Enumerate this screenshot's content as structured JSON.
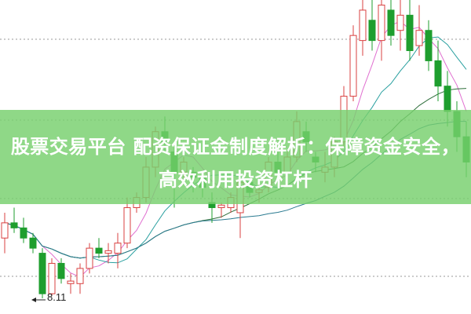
{
  "title": "股票交易平台 配资保证金制度解析：保障资金安全，高效利用投资杠杆",
  "colors": {
    "banner": "#76d06c",
    "up": "#d94040",
    "down": "#1e9e2e",
    "ma5": "#e070d0",
    "ma10": "#2aa0a0",
    "ma20": "#2d6e3a",
    "ma30": "#2a7a90"
  },
  "chart_data": {
    "type": "candlestick",
    "low_annotation": "8.11",
    "price_range": [
      7.8,
      14.0
    ],
    "grid": "dotted horizontal",
    "moving_averages": [
      5,
      10,
      20,
      30
    ],
    "candles_ohlc": [
      [
        9.3,
        9.8,
        9.0,
        9.6
      ],
      [
        9.6,
        9.9,
        9.4,
        9.5
      ],
      [
        9.5,
        9.7,
        9.2,
        9.3
      ],
      [
        9.3,
        9.4,
        9.0,
        9.1
      ],
      [
        9.0,
        9.1,
        8.11,
        8.2
      ],
      [
        8.2,
        8.9,
        8.15,
        8.8
      ],
      [
        8.8,
        8.9,
        8.4,
        8.5
      ],
      [
        8.4,
        8.6,
        8.2,
        8.45
      ],
      [
        8.4,
        8.8,
        8.2,
        8.7
      ],
      [
        8.7,
        9.2,
        8.6,
        9.1
      ],
      [
        9.1,
        9.3,
        8.9,
        9.0
      ],
      [
        9.0,
        9.2,
        8.8,
        9.05
      ],
      [
        9.0,
        9.4,
        8.7,
        9.2
      ],
      [
        9.2,
        10.1,
        9.1,
        9.9
      ],
      [
        9.9,
        10.2,
        9.8,
        10.1
      ],
      [
        10.1,
        10.9,
        10.0,
        10.7
      ],
      [
        10.7,
        11.5,
        10.5,
        11.4
      ],
      [
        11.4,
        11.7,
        11.0,
        11.2
      ],
      [
        11.0,
        11.1,
        9.9,
        10.6
      ],
      [
        10.6,
        10.9,
        10.4,
        10.8
      ],
      [
        10.6,
        10.7,
        10.2,
        10.5
      ],
      [
        10.5,
        10.6,
        10.1,
        10.3
      ],
      [
        10.0,
        10.2,
        9.6,
        9.9
      ],
      [
        9.9,
        10.0,
        9.7,
        9.95
      ],
      [
        9.9,
        10.2,
        9.8,
        10.1
      ],
      [
        9.8,
        10.5,
        9.3,
        10.4
      ],
      [
        10.4,
        10.6,
        10.1,
        10.2
      ],
      [
        10.2,
        10.4,
        10.0,
        10.25
      ],
      [
        10.3,
        10.9,
        10.2,
        10.8
      ],
      [
        10.8,
        11.0,
        10.5,
        10.6
      ],
      [
        10.6,
        11.0,
        10.5,
        10.9
      ],
      [
        10.9,
        11.8,
        10.8,
        11.6
      ],
      [
        11.4,
        11.6,
        11.0,
        11.2
      ],
      [
        10.9,
        11.0,
        10.6,
        10.8
      ],
      [
        10.6,
        11.0,
        10.4,
        10.7
      ],
      [
        10.7,
        11.3,
        10.5,
        11.2
      ],
      [
        11.2,
        12.3,
        11.1,
        12.1
      ],
      [
        12.1,
        13.5,
        12.0,
        13.3
      ],
      [
        13.2,
        14.0,
        12.9,
        13.8
      ],
      [
        13.6,
        14.0,
        13.0,
        13.2
      ],
      [
        13.2,
        14.0,
        12.8,
        13.9
      ],
      [
        13.8,
        14.0,
        13.1,
        13.3
      ],
      [
        13.4,
        14.0,
        13.0,
        13.7
      ],
      [
        13.7,
        14.0,
        12.8,
        13.0
      ],
      [
        13.1,
        13.9,
        12.9,
        13.4
      ],
      [
        13.4,
        13.6,
        12.6,
        12.8
      ],
      [
        12.8,
        13.2,
        12.0,
        12.3
      ],
      [
        12.3,
        12.6,
        11.5,
        11.8
      ],
      [
        11.8,
        12.0,
        11.0,
        11.3
      ],
      [
        11.3,
        11.6,
        10.5,
        10.8
      ]
    ]
  }
}
